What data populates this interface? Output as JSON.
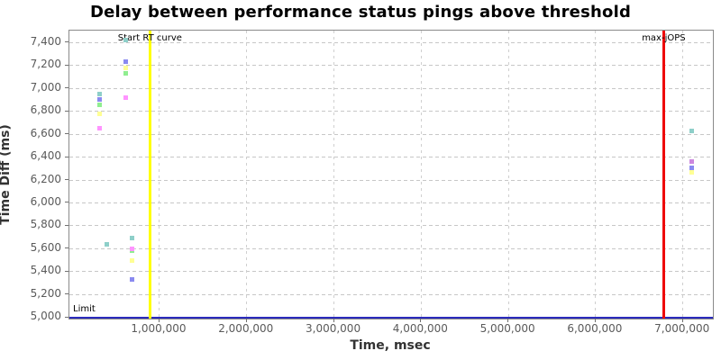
{
  "title": "Delay between performance status pings above threshold",
  "axes": {
    "x": {
      "label": "Time, msec",
      "tick_labels": [
        "1,000,000",
        "2,000,000",
        "3,000,000",
        "4,000,000",
        "5,000,000",
        "6,000,000",
        "7,000,000"
      ],
      "tick_values": [
        1000000,
        2000000,
        3000000,
        4000000,
        5000000,
        6000000,
        7000000
      ]
    },
    "y": {
      "label": "Time Diff (ms)",
      "tick_labels": [
        "5,000",
        "5,200",
        "5,400",
        "5,600",
        "5,800",
        "6,000",
        "6,200",
        "6,400",
        "6,600",
        "6,800",
        "7,000",
        "7,200",
        "7,400"
      ],
      "tick_values": [
        5000,
        5200,
        5400,
        5600,
        5800,
        6000,
        6200,
        6400,
        6600,
        6800,
        7000,
        7200,
        7400
      ]
    }
  },
  "annotations": {
    "start_rt_label": "Start RT curve",
    "max_jops_label": "max-jOPS",
    "limit_label": "Limit"
  },
  "colors": {
    "start_rt_line": "#ffff00",
    "max_jops_line": "#ee0909",
    "limit_line": "#2b2bbd",
    "grid": "#c7c7c7",
    "plot_border": "#8a8a8a"
  },
  "chart_data": {
    "type": "scatter",
    "title": "Delay between performance status pings above threshold",
    "xlabel": "Time, msec",
    "ylabel": "Time Diff (ms)",
    "xlim": [
      -33000,
      7344000
    ],
    "ylim": [
      4990,
      7505
    ],
    "grid": true,
    "legend": false,
    "marker": "square",
    "series": [
      {
        "name": "teal",
        "color": "#8ECFC9",
        "points": [
          [
            310000,
            6950
          ],
          [
            400000,
            5635
          ],
          [
            610000,
            7420
          ],
          [
            690000,
            5690
          ],
          [
            7100000,
            6625
          ]
        ]
      },
      {
        "name": "periwinkle",
        "color": "#8A8AF0",
        "points": [
          [
            310000,
            6905
          ],
          [
            610000,
            7230
          ],
          [
            690000,
            5335
          ],
          [
            7100000,
            6310
          ]
        ]
      },
      {
        "name": "green",
        "color": "#90EE90",
        "points": [
          [
            310000,
            6855
          ],
          [
            610000,
            7135
          ],
          [
            690000,
            5580
          ]
        ]
      },
      {
        "name": "yellow",
        "color": "#FFFF94",
        "points": [
          [
            310000,
            6780
          ],
          [
            610000,
            7180
          ],
          [
            690000,
            5495
          ],
          [
            7100000,
            6265
          ]
        ]
      },
      {
        "name": "magenta",
        "color": "#FF94FF",
        "points": [
          [
            310000,
            6655
          ],
          [
            610000,
            6920
          ],
          [
            690000,
            5600
          ]
        ]
      },
      {
        "name": "orchid",
        "color": "#CD88DE",
        "points": [
          [
            7100000,
            6365
          ]
        ]
      }
    ],
    "vlines": [
      {
        "label": "Start RT curve",
        "x": 890000,
        "color": "#ffff00"
      },
      {
        "label": "max-jOPS",
        "x": 6780000,
        "color": "#ee0909"
      }
    ],
    "hlines": [
      {
        "label": "Limit",
        "y": 5000,
        "color": "#2b2bbd"
      }
    ]
  }
}
